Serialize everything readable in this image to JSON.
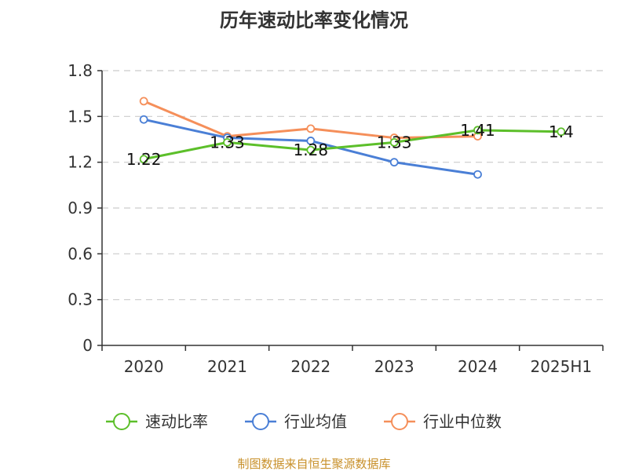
{
  "chart_data": {
    "type": "line",
    "title": "历年速动比率变化情况",
    "categories": [
      "2020",
      "2021",
      "2022",
      "2023",
      "2024",
      "2025H1"
    ],
    "ylim": [
      0,
      1.8
    ],
    "yticks": [
      0,
      0.3,
      0.6,
      0.9,
      1.2,
      1.5,
      1.8
    ],
    "grid": true,
    "legend_position": "bottom",
    "series": [
      {
        "name": "速动比率",
        "color": "#5cbf2a",
        "values": [
          1.22,
          1.33,
          1.28,
          1.33,
          1.41,
          1.4
        ],
        "labels": [
          "1.22",
          "1.33",
          "1.28",
          "1.33",
          "1.41",
          "1.4"
        ]
      },
      {
        "name": "行业均值",
        "color": "#4a7fd6",
        "values": [
          1.48,
          1.36,
          1.34,
          1.2,
          1.12,
          null
        ]
      },
      {
        "name": "行业中位数",
        "color": "#f58f5a",
        "values": [
          1.6,
          1.37,
          1.42,
          1.36,
          1.37,
          null
        ]
      }
    ],
    "source": "制图数据来自恒生聚源数据库"
  }
}
